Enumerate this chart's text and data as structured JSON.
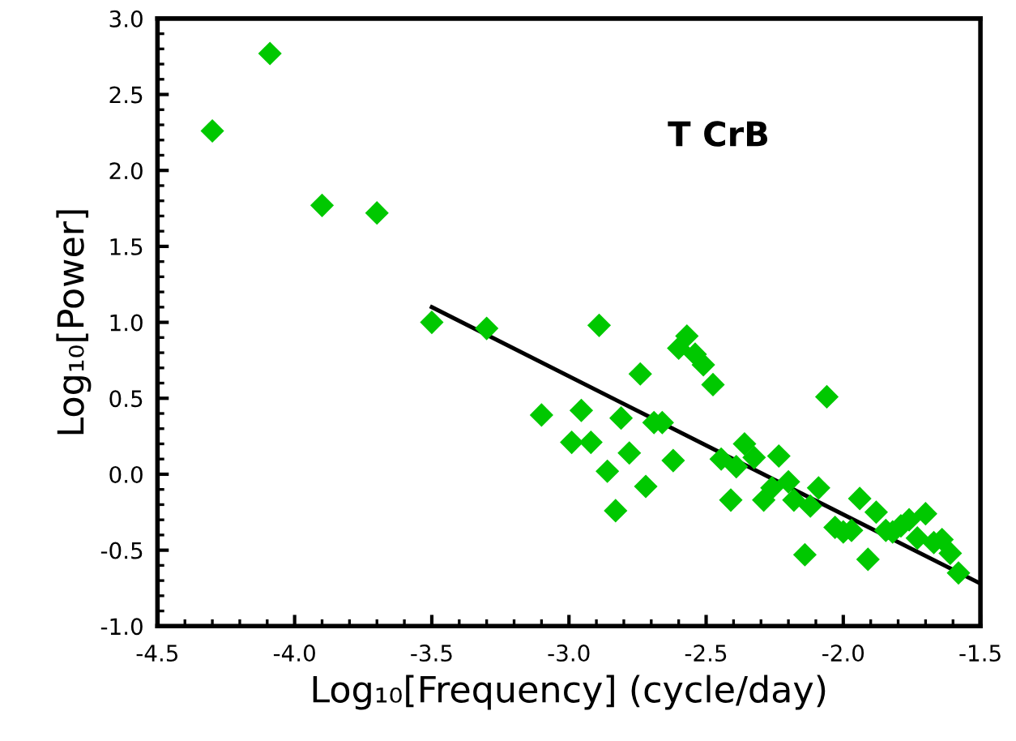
{
  "chart_data": {
    "type": "scatter",
    "xlabel": "Log₁₀[Frequency] (cycle/day)",
    "ylabel": "Log₁₀[Power]",
    "annotations": [
      "T CrB"
    ],
    "xlim": [
      -4.5,
      -1.5
    ],
    "ylim": [
      -1.0,
      3.0
    ],
    "xticks": [
      {
        "value": -4.5,
        "label": "-4.5"
      },
      {
        "value": -4.0,
        "label": "-4.0"
      },
      {
        "value": -3.5,
        "label": "-3.5"
      },
      {
        "value": -3.0,
        "label": "-3.0"
      },
      {
        "value": -2.5,
        "label": "-2.5"
      },
      {
        "value": -2.0,
        "label": "-2.0"
      },
      {
        "value": -1.5,
        "label": "-1.5"
      }
    ],
    "yticks": [
      {
        "value": -1.0,
        "label": "-1.0"
      },
      {
        "value": -0.5,
        "label": "-0.5"
      },
      {
        "value": 0.0,
        "label": "0.0"
      },
      {
        "value": 0.5,
        "label": "0.5"
      },
      {
        "value": 1.0,
        "label": "1.0"
      },
      {
        "value": 1.5,
        "label": "1.5"
      },
      {
        "value": 2.0,
        "label": "2.0"
      },
      {
        "value": 2.5,
        "label": "2.5"
      },
      {
        "value": 3.0,
        "label": "3.0"
      }
    ],
    "grid": false,
    "legend": false,
    "series": [
      {
        "color": "#00c800",
        "marker": "diamond",
        "x": [
          -4.3,
          -4.09,
          -3.9,
          -3.7,
          -3.5,
          -3.3,
          -3.1,
          -2.955,
          -2.99,
          -2.92,
          -2.89,
          -2.86,
          -2.81,
          -2.83,
          -2.78,
          -2.74,
          -2.72,
          -2.69,
          -2.66,
          -2.62,
          -2.6,
          -2.57,
          -2.54,
          -2.51,
          -2.475,
          -2.445,
          -2.41,
          -2.39,
          -2.36,
          -2.325,
          -2.29,
          -2.26,
          -2.235,
          -2.2,
          -2.18,
          -2.12,
          -2.14,
          -2.09,
          -2.06,
          -2.03,
          -2.0,
          -1.97,
          -1.94,
          -1.91,
          -1.88,
          -1.845,
          -1.82,
          -1.79,
          -1.76,
          -1.73,
          -1.7,
          -1.67,
          -1.64,
          -1.61,
          -1.58
        ],
        "values": [
          2.26,
          2.77,
          1.77,
          1.72,
          1.0,
          0.96,
          0.39,
          0.42,
          0.21,
          0.21,
          0.98,
          0.02,
          0.37,
          -0.24,
          0.14,
          0.66,
          -0.08,
          0.34,
          0.34,
          0.09,
          0.83,
          0.91,
          0.79,
          0.72,
          0.59,
          0.1,
          -0.17,
          0.05,
          0.2,
          0.11,
          -0.17,
          -0.09,
          0.12,
          -0.05,
          -0.17,
          -0.21,
          -0.53,
          -0.09,
          0.51,
          -0.35,
          -0.38,
          -0.37,
          -0.16,
          -0.56,
          -0.25,
          -0.37,
          -0.38,
          -0.34,
          -0.3,
          -0.42,
          -0.26,
          -0.45,
          -0.43,
          -0.52,
          -0.65
        ]
      },
      {
        "type": "line",
        "color": "#000000",
        "marker": "none",
        "line_style": "solid",
        "x": [
          -3.5,
          -1.5
        ],
        "values": [
          1.1,
          -0.72
        ]
      }
    ]
  }
}
